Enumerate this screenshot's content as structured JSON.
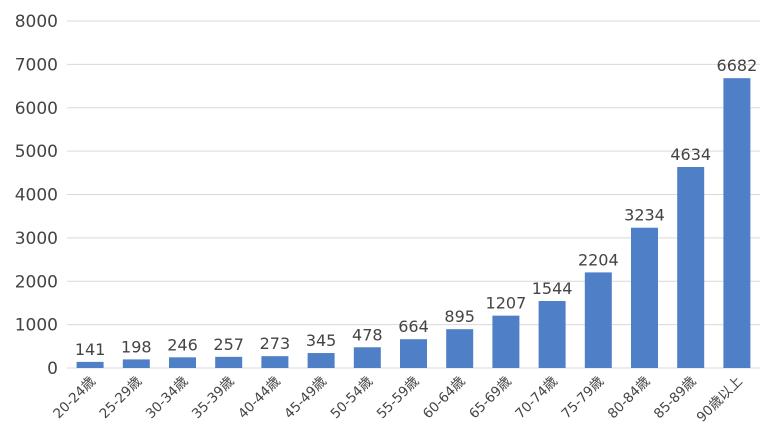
{
  "chart_data": {
    "type": "bar",
    "categories": [
      "20-24歳",
      "25-29歳",
      "30-34歳",
      "35-39歳",
      "40-44歳",
      "45-49歳",
      "50-54歳",
      "55-59歳",
      "60-64歳",
      "65-69歳",
      "70-74歳",
      "75-79歳",
      "80-84歳",
      "85-89歳",
      "90歳以上"
    ],
    "values": [
      141,
      198,
      246,
      257,
      273,
      345,
      478,
      664,
      895,
      1207,
      1544,
      2204,
      3234,
      4634,
      6682
    ],
    "title": "",
    "xlabel": "",
    "ylabel": "",
    "ylim": [
      0,
      8000
    ],
    "yticks": [
      0,
      1000,
      2000,
      3000,
      4000,
      5000,
      6000,
      7000,
      8000
    ],
    "grid": true,
    "legend": "none",
    "colors": {
      "bar": "#4f7fc7",
      "grid": "#d9d9d9",
      "text": "#444444"
    }
  }
}
